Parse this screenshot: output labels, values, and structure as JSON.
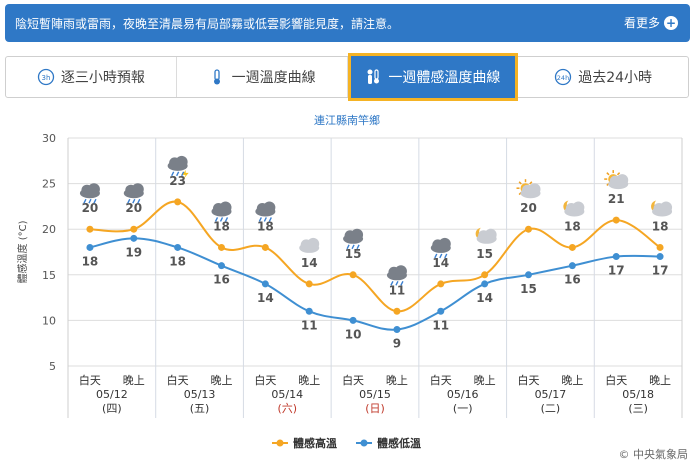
{
  "banner": {
    "message": "陰短暫陣雨或雷雨，夜晚至清晨易有局部霧或低雲影響能見度，請注意。",
    "more_label": "看更多"
  },
  "tabs": [
    {
      "label": "逐三小時預報",
      "icon": "3h-clock-icon",
      "active": false
    },
    {
      "label": "一週溫度曲線",
      "icon": "thermometer-icon",
      "active": false
    },
    {
      "label": "一週體感溫度曲線",
      "icon": "person-thermometer-icon",
      "active": true
    },
    {
      "label": "過去24小時",
      "icon": "24h-clock-icon",
      "active": false
    }
  ],
  "footer": {
    "credit": "© 中央氣象局"
  },
  "chart_data": {
    "type": "line",
    "title": "連江縣南竿鄉",
    "ylabel": "體感溫度 (°C)",
    "ylim": [
      5,
      30
    ],
    "yticks": [
      5,
      10,
      15,
      20,
      25,
      30
    ],
    "grid": true,
    "legend_position": "bottom",
    "categories": [
      {
        "period": "白天",
        "date": "05/12",
        "weekday": "(四)",
        "weekday_color": "#333333"
      },
      {
        "period": "晚上"
      },
      {
        "period": "白天",
        "date": "05/13",
        "weekday": "(五)",
        "weekday_color": "#333333"
      },
      {
        "period": "晚上"
      },
      {
        "period": "白天",
        "date": "05/14",
        "weekday": "(六)",
        "weekday_color": "#c0392b"
      },
      {
        "period": "晚上"
      },
      {
        "period": "白天",
        "date": "05/15",
        "weekday": "(日)",
        "weekday_color": "#c0392b"
      },
      {
        "period": "晚上"
      },
      {
        "period": "白天",
        "date": "05/16",
        "weekday": "(一)",
        "weekday_color": "#333333"
      },
      {
        "period": "晚上"
      },
      {
        "period": "白天",
        "date": "05/17",
        "weekday": "(二)",
        "weekday_color": "#333333"
      },
      {
        "period": "晚上"
      },
      {
        "period": "白天",
        "date": "05/18",
        "weekday": "(三)",
        "weekday_color": "#333333"
      },
      {
        "period": "晚上"
      }
    ],
    "weather_icons": [
      "rain-cloud-icon",
      "rain-cloud-icon",
      "thunder-rain-icon",
      "rain-cloud-icon",
      "rain-cloud-icon",
      "cloudy-icon",
      "rain-cloud-icon",
      "rain-cloud-icon",
      "rain-cloud-icon",
      "moon-cloud-icon",
      "sun-cloud-icon",
      "moon-cloud-icon",
      "sun-cloud-icon",
      "moon-cloud-icon"
    ],
    "series": [
      {
        "name": "體感高溫",
        "color": "#f5a623",
        "values": [
          20,
          20,
          23,
          18,
          18,
          14,
          15,
          11,
          14,
          15,
          20,
          18,
          21,
          18
        ]
      },
      {
        "name": "體感低溫",
        "color": "#3f8fd2",
        "values": [
          18,
          19,
          18,
          16,
          14,
          11,
          10,
          9,
          11,
          14,
          15,
          16,
          17,
          17
        ]
      }
    ]
  }
}
